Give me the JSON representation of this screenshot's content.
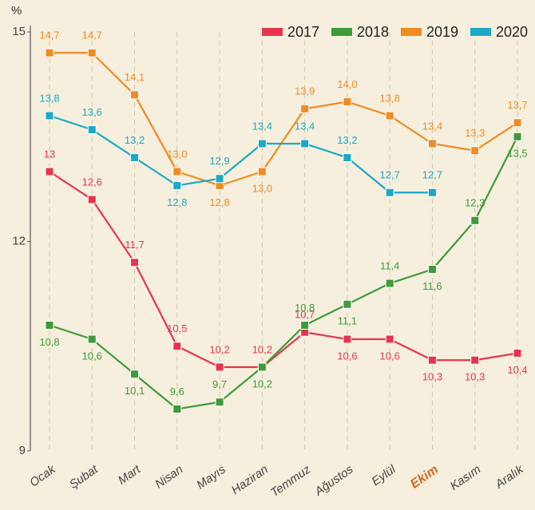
{
  "chart_data": {
    "type": "line",
    "y_label": "%",
    "categories": [
      "Ocak",
      "Şubat",
      "Mart",
      "Nisan",
      "Mayıs",
      "Haziran",
      "Temmuz",
      "Ağustos",
      "Eylül",
      "Ekim",
      "Kasım",
      "Aralık"
    ],
    "highlighted_category": "Ekim",
    "ylim": [
      9,
      15
    ],
    "yticks": [
      9,
      12,
      15
    ],
    "grid": true,
    "legend": "top-right",
    "series": [
      {
        "name": "2017",
        "color": "#e8334f",
        "values": [
          13,
          12.6,
          11.7,
          10.5,
          10.2,
          10.2,
          10.7,
          10.6,
          10.6,
          10.3,
          10.3,
          10.4
        ],
        "value_labels": [
          "13",
          "12,6",
          "11,7",
          "10,5",
          "10,2",
          "10,2",
          "10,7",
          "10,6",
          "10,6",
          "10,3",
          "10,3",
          "10,4"
        ]
      },
      {
        "name": "2018",
        "color": "#3e9a3a",
        "values": [
          10.8,
          10.6,
          10.1,
          9.6,
          9.7,
          10.2,
          10.8,
          11.1,
          11.4,
          11.6,
          12.3,
          13.5
        ],
        "value_labels": [
          "10,8",
          "10,6",
          "10,1",
          "9,6",
          "9,7",
          "10,2",
          "10,8",
          "11,1",
          "11,4",
          "11,6",
          "12,3",
          "13,5"
        ]
      },
      {
        "name": "2019",
        "color": "#f08a22",
        "values": [
          14.7,
          14.7,
          14.1,
          13.0,
          12.8,
          13.0,
          13.9,
          14.0,
          13.8,
          13.4,
          13.3,
          13.7
        ],
        "value_labels": [
          "14,7",
          "14,7",
          "14,1",
          "13,0",
          "12,8",
          "13,0",
          "13,9",
          "14,0",
          "13,8",
          "13,4",
          "13,3",
          "13,7"
        ]
      },
      {
        "name": "2020",
        "color": "#19a9c6",
        "values": [
          13.8,
          13.6,
          13.2,
          12.8,
          12.9,
          13.4,
          13.4,
          13.2,
          12.7,
          12.7,
          null,
          null
        ],
        "value_labels": [
          "13,8",
          "13,6",
          "13,2",
          "12,8",
          "12,9",
          "13,4",
          "13,4",
          "13,2",
          "12,7",
          "12,7",
          null,
          null
        ]
      }
    ]
  }
}
